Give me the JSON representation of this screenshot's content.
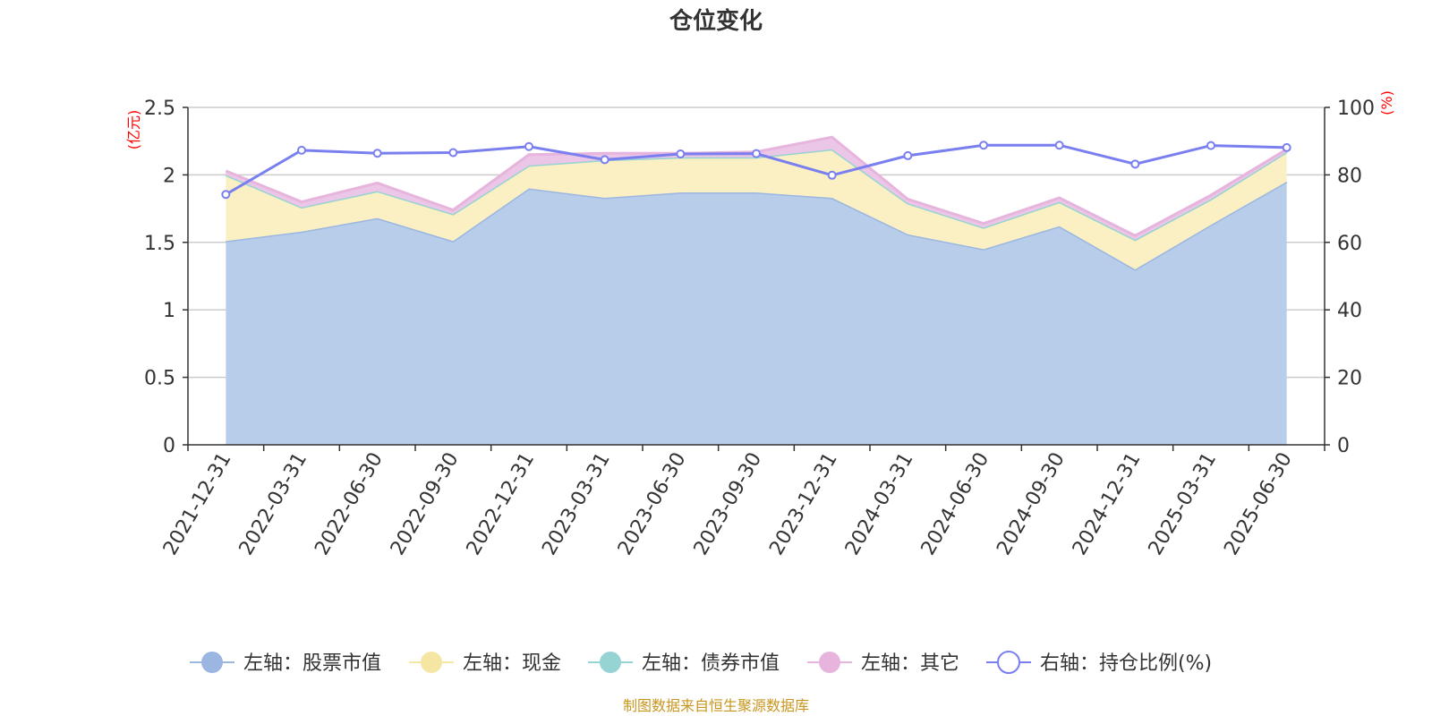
{
  "chart_data": {
    "type": "area",
    "title": "仓位变化",
    "left_axis_unit": "(亿元)",
    "right_axis_unit": "(%)",
    "categories": [
      "2021-12-31",
      "2022-03-31",
      "2022-06-30",
      "2022-09-30",
      "2022-12-31",
      "2023-03-31",
      "2023-06-30",
      "2023-09-30",
      "2023-12-31",
      "2024-03-31",
      "2024-06-30",
      "2024-09-30",
      "2024-12-31",
      "2025-03-31",
      "2025-06-30"
    ],
    "left_yticks": [
      "0",
      "0.5",
      "1",
      "1.5",
      "2",
      "2.5"
    ],
    "right_yticks": [
      "0",
      "20",
      "40",
      "60",
      "80",
      "100"
    ],
    "ylim_left": [
      0,
      2.5
    ],
    "ylim_right": [
      0,
      100
    ],
    "series": [
      {
        "name": "左轴：股票市值",
        "axis": "left",
        "type": "stacked-area",
        "color": "#9bb6e0",
        "fill": "#b8cdea",
        "values": [
          1.51,
          1.58,
          1.68,
          1.51,
          1.9,
          1.83,
          1.87,
          1.87,
          1.83,
          1.56,
          1.45,
          1.62,
          1.3,
          1.63,
          1.95
        ]
      },
      {
        "name": "左轴：现金",
        "axis": "left",
        "type": "stacked-area",
        "color": "#f5e6a3",
        "fill": "#fbf0c4",
        "values": [
          0.49,
          0.18,
          0.2,
          0.2,
          0.17,
          0.28,
          0.26,
          0.26,
          0.36,
          0.23,
          0.16,
          0.18,
          0.22,
          0.19,
          0.22
        ]
      },
      {
        "name": "左轴：债券市值",
        "axis": "left",
        "type": "stacked-area",
        "color": "#96d4d4",
        "fill": "#bfe6e6",
        "values": [
          0,
          0,
          0,
          0,
          0,
          0,
          0,
          0,
          0,
          0,
          0,
          0,
          0,
          0,
          0
        ]
      },
      {
        "name": "左轴：其它",
        "axis": "left",
        "type": "stacked-area",
        "color": "#e6b4dc",
        "fill": "#ecc6e6",
        "values": [
          0.03,
          0.04,
          0.06,
          0.03,
          0.08,
          0.05,
          0.03,
          0.04,
          0.09,
          0.03,
          0.03,
          0.03,
          0.03,
          0.03,
          0.02
        ]
      },
      {
        "name": "右轴：持仓比例(%)",
        "axis": "right",
        "type": "line",
        "color": "#7a7ff0",
        "values": [
          74.2,
          87.3,
          86.4,
          86.6,
          88.4,
          84.5,
          86.2,
          86.3,
          79.9,
          85.7,
          88.8,
          88.8,
          83.2,
          88.7,
          88.1
        ]
      }
    ],
    "grid": true,
    "legend_position": "bottom",
    "source_note": "制图数据来自恒生聚源数据库"
  }
}
